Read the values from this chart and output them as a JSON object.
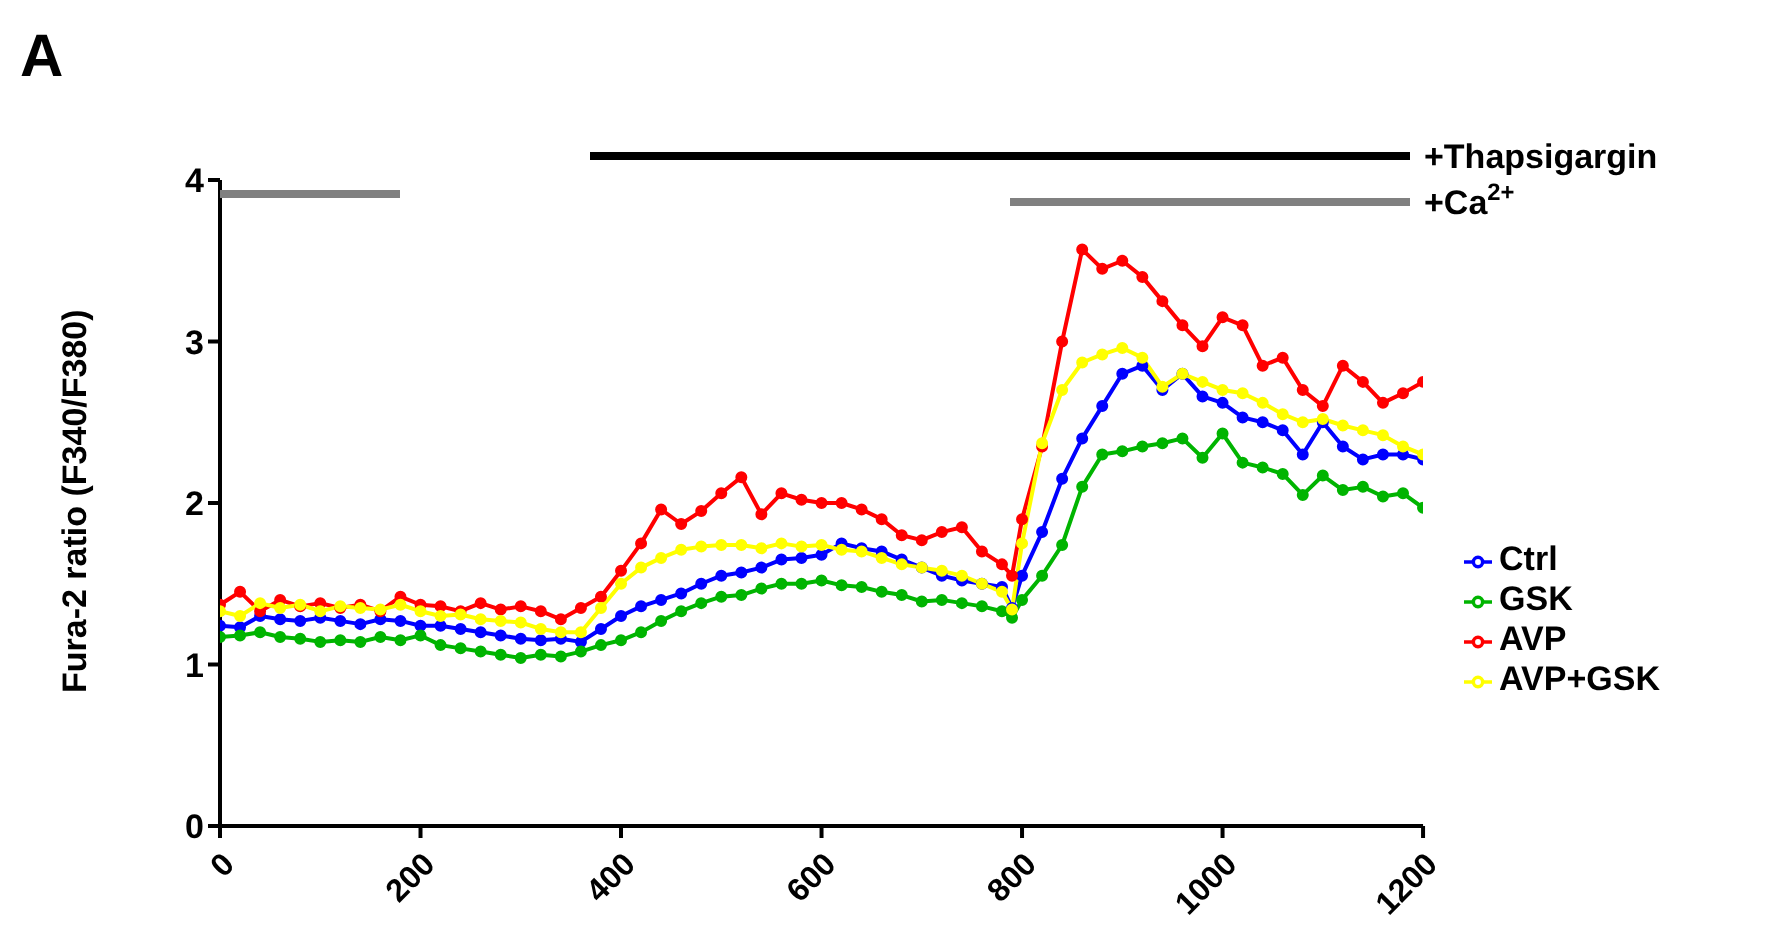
{
  "chart_data": {
    "type": "line",
    "ylabel": "Fura-2 ratio (F340/F380)",
    "annotations": [
      "A",
      "+Thapsigargin",
      "+Ca$^{2+}$"
    ],
    "x": [
      0,
      20,
      40,
      60,
      80,
      100,
      120,
      140,
      160,
      180,
      200,
      220,
      240,
      260,
      280,
      300,
      320,
      340,
      360,
      380,
      400,
      420,
      440,
      460,
      480,
      500,
      520,
      540,
      560,
      580,
      600,
      620,
      640,
      660,
      680,
      700,
      720,
      740,
      760,
      780,
      790,
      800,
      820,
      840,
      860,
      880,
      900,
      920,
      940,
      960,
      980,
      1000,
      1020,
      1040,
      1060,
      1080,
      1100,
      1120,
      1140,
      1160,
      1180,
      1200
    ],
    "series": [
      {
        "name": "Ctrl",
        "color": "#0000ff",
        "values": [
          1.24,
          1.23,
          1.3,
          1.28,
          1.27,
          1.29,
          1.27,
          1.25,
          1.28,
          1.27,
          1.24,
          1.24,
          1.22,
          1.2,
          1.18,
          1.16,
          1.15,
          1.16,
          1.14,
          1.22,
          1.3,
          1.36,
          1.4,
          1.44,
          1.5,
          1.55,
          1.57,
          1.6,
          1.65,
          1.66,
          1.68,
          1.75,
          1.72,
          1.7,
          1.65,
          1.6,
          1.55,
          1.52,
          1.5,
          1.48,
          1.35,
          1.55,
          1.82,
          2.15,
          2.4,
          2.6,
          2.8,
          2.85,
          2.7,
          2.8,
          2.66,
          2.62,
          2.53,
          2.5,
          2.45,
          2.3,
          2.5,
          2.35,
          2.27,
          2.3,
          2.3,
          2.27
        ]
      },
      {
        "name": "GSK",
        "color": "#00b400",
        "values": [
          1.17,
          1.18,
          1.2,
          1.17,
          1.16,
          1.14,
          1.15,
          1.14,
          1.17,
          1.15,
          1.18,
          1.12,
          1.1,
          1.08,
          1.06,
          1.04,
          1.06,
          1.05,
          1.08,
          1.12,
          1.15,
          1.2,
          1.27,
          1.33,
          1.38,
          1.42,
          1.43,
          1.47,
          1.5,
          1.5,
          1.52,
          1.49,
          1.48,
          1.45,
          1.43,
          1.39,
          1.4,
          1.38,
          1.36,
          1.33,
          1.29,
          1.4,
          1.55,
          1.74,
          2.1,
          2.3,
          2.32,
          2.35,
          2.37,
          2.4,
          2.28,
          2.43,
          2.25,
          2.22,
          2.18,
          2.05,
          2.17,
          2.08,
          2.1,
          2.04,
          2.06,
          1.97
        ]
      },
      {
        "name": "AVP",
        "color": "#ff0000",
        "values": [
          1.37,
          1.45,
          1.33,
          1.4,
          1.36,
          1.38,
          1.35,
          1.37,
          1.33,
          1.42,
          1.37,
          1.36,
          1.33,
          1.38,
          1.34,
          1.36,
          1.33,
          1.28,
          1.35,
          1.42,
          1.58,
          1.75,
          1.96,
          1.87,
          1.95,
          2.06,
          2.16,
          1.93,
          2.06,
          2.02,
          2.0,
          2.0,
          1.96,
          1.9,
          1.8,
          1.77,
          1.82,
          1.85,
          1.7,
          1.62,
          1.55,
          1.9,
          2.35,
          3.0,
          3.57,
          3.45,
          3.5,
          3.4,
          3.25,
          3.1,
          2.97,
          3.15,
          3.1,
          2.85,
          2.9,
          2.7,
          2.6,
          2.85,
          2.75,
          2.62,
          2.68,
          2.75
        ]
      },
      {
        "name": "AVP+GSK",
        "color": "#ffff00",
        "values": [
          1.33,
          1.3,
          1.38,
          1.35,
          1.37,
          1.33,
          1.36,
          1.35,
          1.34,
          1.37,
          1.33,
          1.3,
          1.31,
          1.28,
          1.27,
          1.26,
          1.22,
          1.2,
          1.2,
          1.35,
          1.5,
          1.6,
          1.66,
          1.71,
          1.73,
          1.74,
          1.74,
          1.72,
          1.75,
          1.73,
          1.74,
          1.71,
          1.7,
          1.66,
          1.62,
          1.6,
          1.58,
          1.55,
          1.5,
          1.45,
          1.34,
          1.75,
          2.37,
          2.7,
          2.87,
          2.92,
          2.96,
          2.9,
          2.72,
          2.8,
          2.75,
          2.7,
          2.68,
          2.62,
          2.55,
          2.5,
          2.52,
          2.48,
          2.45,
          2.42,
          2.35,
          2.3
        ]
      }
    ],
    "xlim": [
      0,
      1200
    ],
    "xticks": [
      0,
      200,
      400,
      600,
      800,
      1000,
      1200
    ],
    "ylim": [
      0,
      4
    ],
    "yticks": [
      0,
      1,
      2,
      3,
      4
    ],
    "legend": "right",
    "marker": "circle",
    "line_style": "solid",
    "grid": false
  }
}
